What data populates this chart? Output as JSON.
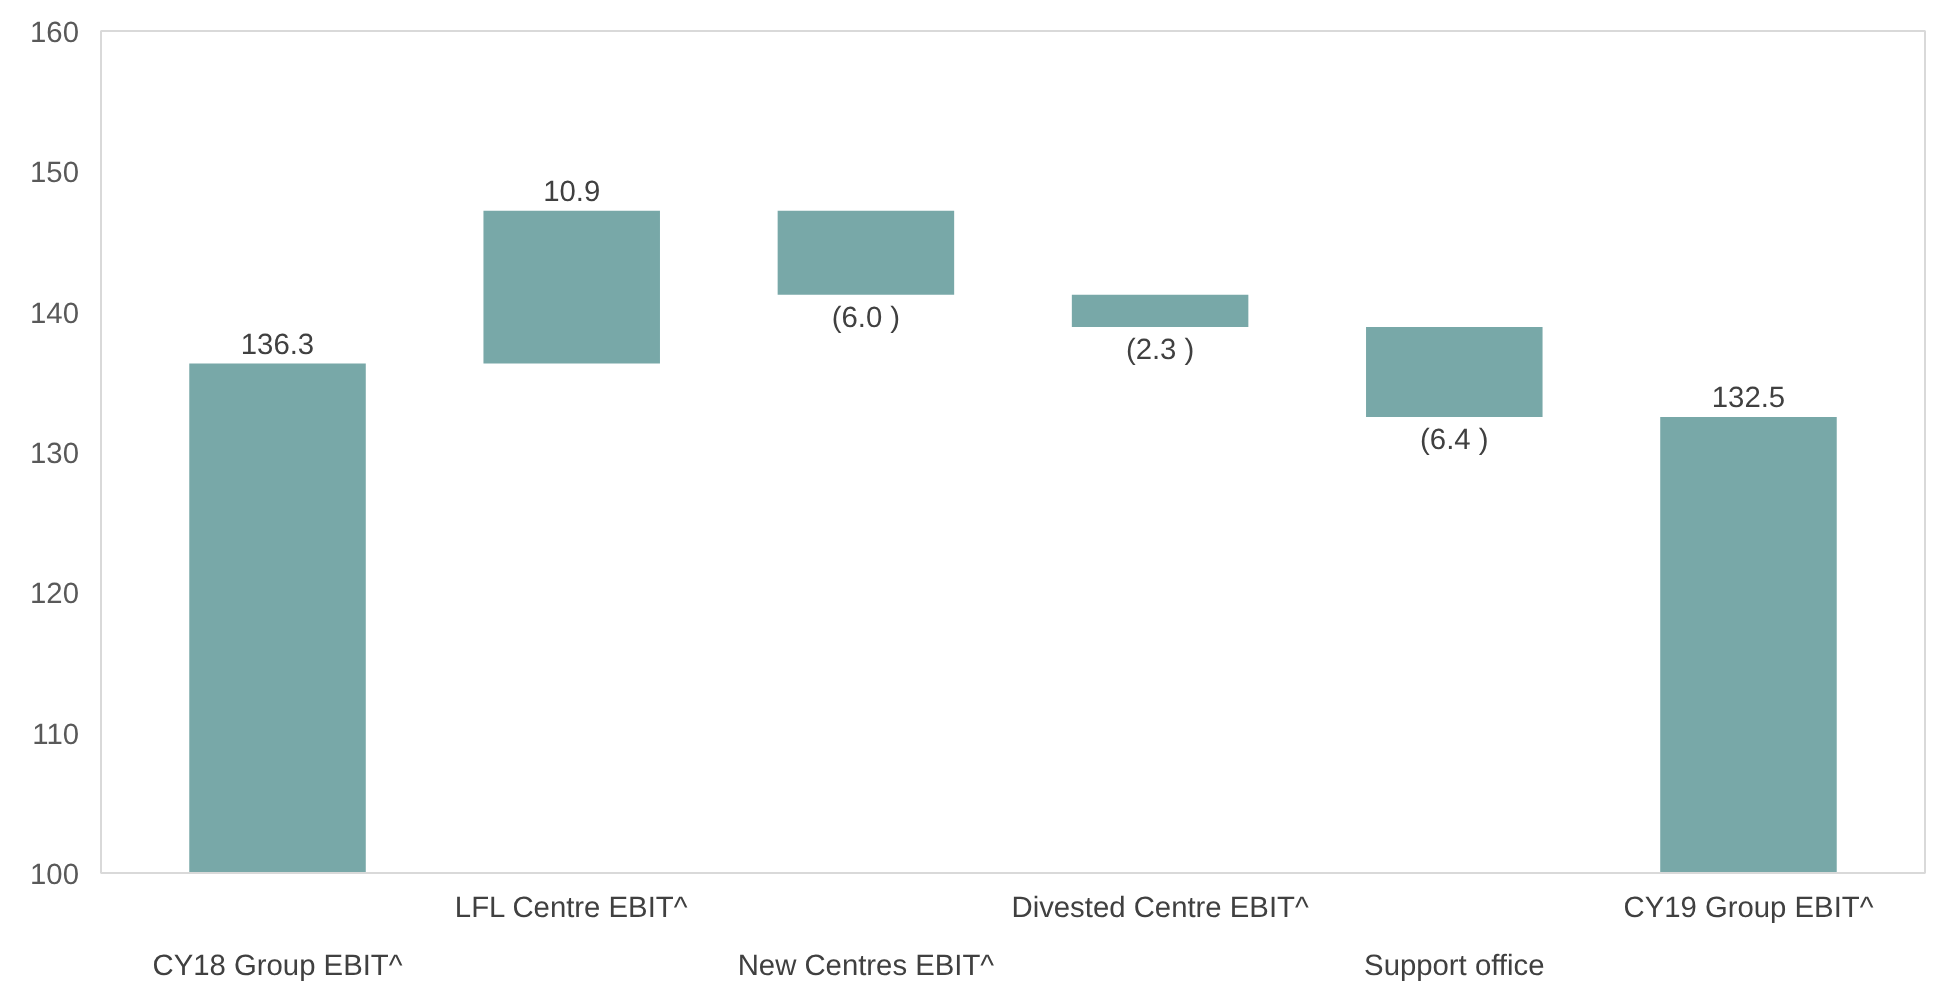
{
  "chart_data": {
    "type": "bar",
    "categories": [
      "CY18 Group EBIT^",
      "LFL Centre EBIT^",
      "New Centres EBIT^",
      "Divested Centre EBIT^",
      "Support office",
      "CY19 Group EBIT^"
    ],
    "values": [
      136.3,
      10.9,
      -6.0,
      -2.3,
      -6.4,
      132.5
    ],
    "base": [
      null,
      136.3,
      147.2,
      141.2,
      138.9,
      null
    ],
    "value_labels": [
      "136.3",
      "10.9",
      "(6.0 )",
      "(2.3 )",
      "(6.4 )",
      "132.5"
    ],
    "color": "#78a8a8",
    "ylim": [
      100,
      160
    ],
    "yticks": [
      100,
      110,
      120,
      130,
      140,
      150,
      160
    ],
    "grid": false
  }
}
